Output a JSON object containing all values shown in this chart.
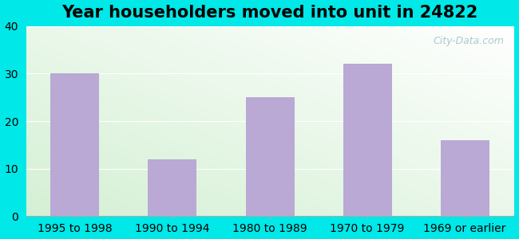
{
  "title": "Year householders moved into unit in 24822",
  "categories": [
    "1995 to 1998",
    "1990 to 1994",
    "1980 to 1989",
    "1970 to 1979",
    "1969 or earlier"
  ],
  "values": [
    30,
    12,
    25,
    32,
    16
  ],
  "bar_color": "#b9a9d4",
  "ylim": [
    0,
    40
  ],
  "yticks": [
    0,
    10,
    20,
    30,
    40
  ],
  "background_outer": "#00e8e8",
  "title_fontsize": 15,
  "tick_fontsize": 10,
  "watermark": "City-Data.com"
}
